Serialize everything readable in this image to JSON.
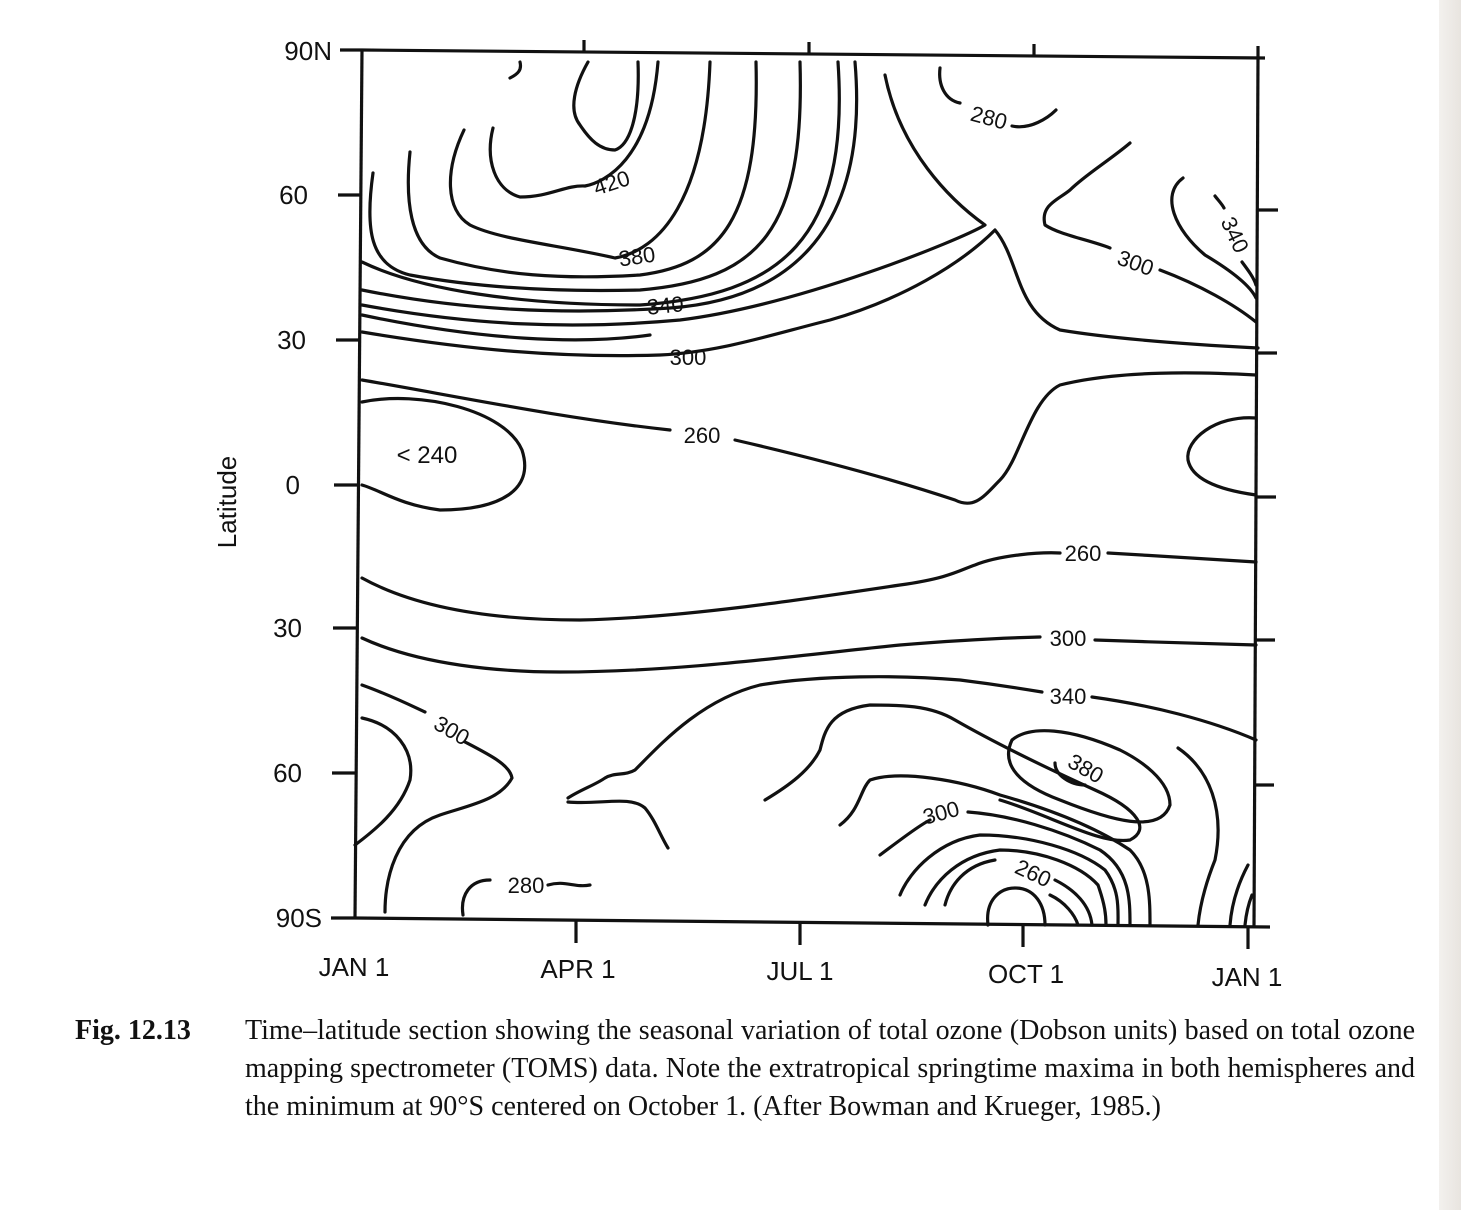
{
  "chart_data": {
    "type": "contour",
    "xlabel": "",
    "ylabel": "Latitude",
    "x_ticks": [
      "JAN 1",
      "APR 1",
      "JUL 1",
      "OCT 1",
      "JAN 1"
    ],
    "y_ticks": [
      "90N",
      "60",
      "30",
      "0",
      "30",
      "60",
      "90S"
    ],
    "y_tick_values": [
      90,
      60,
      30,
      0,
      -30,
      -60,
      -90
    ],
    "xlim": [
      "JAN 1",
      "JAN 1"
    ],
    "ylim": [
      -90,
      90
    ],
    "grid": false,
    "contour_levels": [
      240,
      260,
      280,
      300,
      340,
      380,
      420
    ],
    "contour_labels": [
      {
        "text": "420",
        "month": 3.2,
        "lat": 66
      },
      {
        "text": "380",
        "month": 3.4,
        "lat": 48
      },
      {
        "text": "340",
        "month": 3.9,
        "lat": 38
      },
      {
        "text": "300",
        "month": 4.3,
        "lat": 27
      },
      {
        "text": "260",
        "month": 4.6,
        "lat": 10
      },
      {
        "text": "280",
        "month": 8.5,
        "lat": 81
      },
      {
        "text": "300",
        "month": 10.7,
        "lat": 46
      },
      {
        "text": "340",
        "month": 11.7,
        "lat": 52
      },
      {
        "text": "< 240",
        "month": 0.9,
        "lat": 6
      },
      {
        "text": "260",
        "month": 9.7,
        "lat": -14
      },
      {
        "text": "300",
        "month": 9.5,
        "lat": -32
      },
      {
        "text": "340",
        "month": 9.5,
        "lat": -44
      },
      {
        "text": "300",
        "month": 1.1,
        "lat": -51
      },
      {
        "text": "380",
        "month": 9.6,
        "lat": -59
      },
      {
        "text": "300",
        "month": 7.8,
        "lat": -69
      },
      {
        "text": "260",
        "month": 8.9,
        "lat": -80
      },
      {
        "text": "280",
        "month": 2.0,
        "lat": -84
      }
    ]
  },
  "caption": {
    "label": "Fig. 12.13",
    "text": "Time–latitude section showing the seasonal variation of total ozone (Dobson units) based on total ozone mapping spectrometer (TOMS) data. Note the extratropical springtime maxima in both hemispheres and the minimum at 90°S centered on October 1. (After Bowman and Krueger, 1985.)"
  }
}
